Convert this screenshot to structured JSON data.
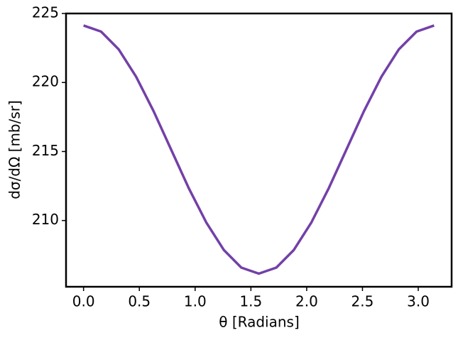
{
  "chart_data": {
    "type": "line",
    "xlabel": "θ [Radians]",
    "ylabel": "dσ/dΩ [mb/sr]",
    "x": [
      0,
      0.157,
      0.314,
      0.471,
      0.628,
      0.785,
      0.942,
      1.1,
      1.257,
      1.414,
      1.571,
      1.728,
      1.885,
      2.042,
      2.199,
      2.356,
      2.513,
      2.67,
      2.827,
      2.985,
      3.142
    ],
    "series": [
      {
        "color": "#7340a8",
        "values": [
          224.13,
          223.69,
          222.41,
          220.42,
          217.92,
          215.14,
          212.36,
          209.86,
          207.87,
          206.59,
          206.15,
          206.59,
          207.87,
          209.86,
          212.36,
          215.14,
          217.92,
          220.42,
          222.41,
          223.69,
          224.13
        ]
      }
    ],
    "xlim": [
      -0.157,
      3.299
    ],
    "ylim": [
      205.2,
      225
    ],
    "xticks": [
      {
        "value": 0,
        "label": "0.0"
      },
      {
        "value": 0.5,
        "label": "0.5"
      },
      {
        "value": 1,
        "label": "1.0"
      },
      {
        "value": 1.5,
        "label": "1.5"
      },
      {
        "value": 2,
        "label": "2.0"
      },
      {
        "value": 2.5,
        "label": "2.5"
      },
      {
        "value": 3,
        "label": "3.0"
      }
    ],
    "yticks": [
      210,
      215,
      220,
      225
    ]
  }
}
